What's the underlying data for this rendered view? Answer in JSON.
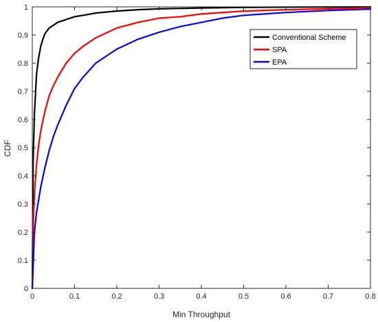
{
  "chart_data": {
    "type": "line",
    "title": "",
    "xlabel": "Min Throughput",
    "ylabel": "CDF",
    "xlim": [
      0,
      0.8
    ],
    "ylim": [
      0,
      1
    ],
    "xticks": [
      0,
      0.1,
      0.2,
      0.3,
      0.4,
      0.5,
      0.6,
      0.7,
      0.8
    ],
    "xtick_labels": [
      "0",
      "0.1",
      "0.2",
      "0.3",
      "0.4",
      "0.5",
      "0.6",
      "0.7",
      "0.8"
    ],
    "yticks": [
      0,
      0.1,
      0.2,
      0.3,
      0.4,
      0.5,
      0.6,
      0.7,
      0.8,
      0.9,
      1
    ],
    "ytick_labels": [
      "0",
      "0.1",
      "0.2",
      "0.3",
      "0.4",
      "0.5",
      "0.6",
      "0.7",
      "0.8",
      "0.9",
      "1"
    ],
    "grid": false,
    "legend_position": "top-right",
    "series": [
      {
        "name": "Conventional Scheme",
        "color": "#000000",
        "x": [
          0,
          0.002,
          0.005,
          0.01,
          0.015,
          0.02,
          0.025,
          0.03,
          0.04,
          0.05,
          0.06,
          0.08,
          0.1,
          0.12,
          0.15,
          0.2,
          0.25,
          0.3,
          0.4,
          0.5,
          0.6,
          0.8
        ],
        "y": [
          0,
          0.45,
          0.62,
          0.76,
          0.82,
          0.86,
          0.885,
          0.905,
          0.925,
          0.935,
          0.945,
          0.955,
          0.965,
          0.97,
          0.978,
          0.985,
          0.99,
          0.993,
          0.996,
          0.998,
          0.999,
          1.0
        ]
      },
      {
        "name": "SPA",
        "color": "#ff0000",
        "x": [
          0,
          0.003,
          0.006,
          0.01,
          0.015,
          0.02,
          0.03,
          0.04,
          0.05,
          0.06,
          0.08,
          0.1,
          0.12,
          0.15,
          0.2,
          0.25,
          0.3,
          0.35,
          0.4,
          0.5,
          0.6,
          0.7,
          0.8
        ],
        "y": [
          0,
          0.27,
          0.36,
          0.44,
          0.51,
          0.56,
          0.63,
          0.685,
          0.72,
          0.75,
          0.8,
          0.835,
          0.86,
          0.89,
          0.925,
          0.945,
          0.96,
          0.965,
          0.975,
          0.985,
          0.99,
          0.993,
          0.997
        ]
      },
      {
        "name": "EPA",
        "color": "#0000ff",
        "x": [
          0,
          0.005,
          0.01,
          0.02,
          0.03,
          0.04,
          0.05,
          0.06,
          0.08,
          0.1,
          0.12,
          0.15,
          0.2,
          0.25,
          0.3,
          0.35,
          0.4,
          0.45,
          0.5,
          0.6,
          0.7,
          0.8
        ],
        "y": [
          0,
          0.2,
          0.27,
          0.36,
          0.43,
          0.49,
          0.54,
          0.58,
          0.65,
          0.71,
          0.75,
          0.8,
          0.85,
          0.885,
          0.91,
          0.93,
          0.945,
          0.96,
          0.97,
          0.98,
          0.987,
          0.992
        ]
      }
    ]
  }
}
